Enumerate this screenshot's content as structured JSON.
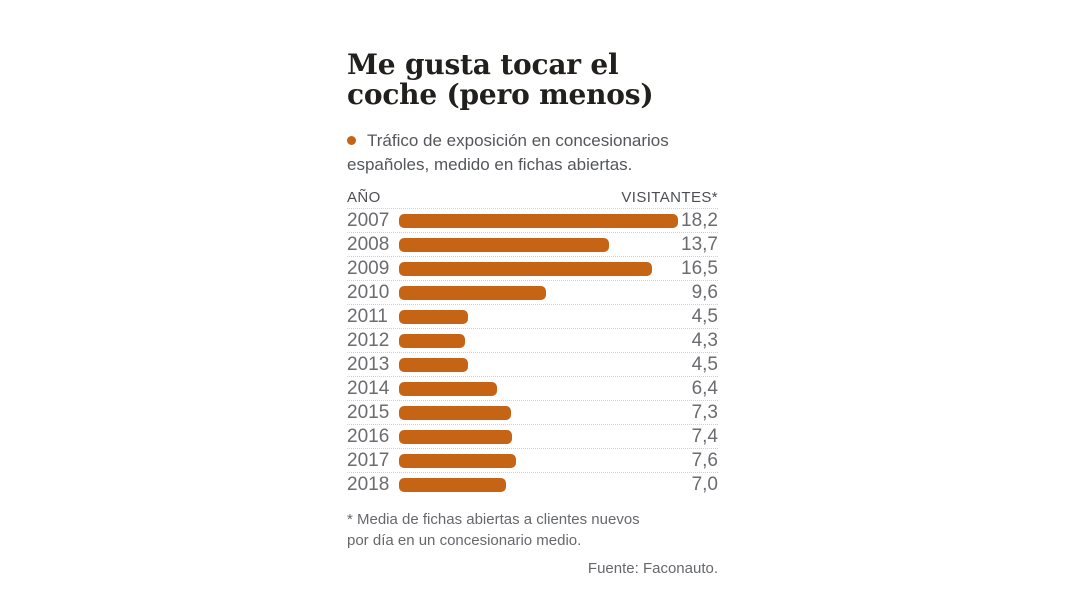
{
  "page": {
    "background": "#ffffff"
  },
  "header": {
    "title_line1": "Me gusta tocar el",
    "title_line2": "coche (pero menos)",
    "subtitle": "Tráfico de exposición en concesionarios españoles, medido en fichas abiertas.",
    "bullet_color": "#c66416"
  },
  "chart_data": {
    "type": "bar",
    "orientation": "horizontal",
    "title": "Me gusta tocar el coche (pero menos)",
    "subtitle": "Tráfico de exposición en concesionarios españoles, medido en fichas abiertas.",
    "year_column_header": "AÑO",
    "value_column_header": "VISITANTES*",
    "categories": [
      "2007",
      "2008",
      "2009",
      "2010",
      "2011",
      "2012",
      "2013",
      "2014",
      "2015",
      "2016",
      "2017",
      "2018"
    ],
    "values": [
      18.2,
      13.7,
      16.5,
      9.6,
      4.5,
      4.3,
      4.5,
      6.4,
      7.3,
      7.4,
      7.6,
      7.0
    ],
    "value_labels": [
      "18,2",
      "13,7",
      "16,5",
      "9,6",
      "4,5",
      "4,3",
      "4,5",
      "6,4",
      "7,3",
      "7,4",
      "7,6",
      "7,0"
    ],
    "xlim": [
      0,
      18.2
    ],
    "bar_color": "#c66416",
    "grid": "dotted-row-separators",
    "legend_position": "none"
  },
  "footer": {
    "footnote_line1": "* Media de fichas abiertas a clientes nuevos",
    "footnote_line2": "por día en un concesionario medio.",
    "source": "Fuente: Faconauto."
  }
}
